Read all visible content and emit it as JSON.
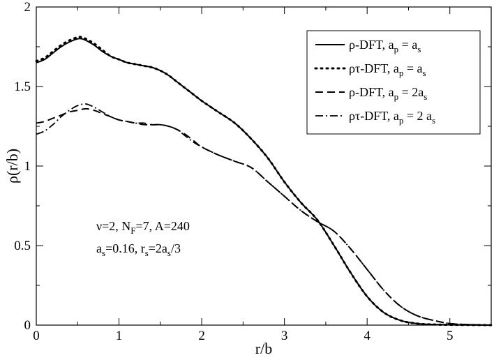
{
  "chart_data": {
    "type": "line",
    "xlabel": "r/b",
    "ylabel": "ρ(r/b)",
    "xlim": [
      0,
      5.5
    ],
    "ylim": [
      0,
      2
    ],
    "x_ticks": [
      0,
      1,
      2,
      3,
      4,
      5
    ],
    "x_tick_labels": [
      "0",
      "1",
      "2",
      "3",
      "4",
      "5"
    ],
    "y_ticks": [
      0,
      0.5,
      1,
      1.5,
      2
    ],
    "y_tick_labels": [
      "0",
      "0.5",
      "1",
      "1.5",
      "2"
    ],
    "annotations": {
      "line1_a": "ν=2, N",
      "line1_sub": "F",
      "line1_b": "=7, A=240",
      "line2_a": "a",
      "line2_sub1": "s",
      "line2_b": "=0.16, r",
      "line2_sub2": "s",
      "line2_c": "=2a",
      "line2_sub3": "s",
      "line2_d": "/3"
    },
    "legend_position": "top-right",
    "series": [
      {
        "name": "ρ-DFT, a_p = a_s",
        "legend": {
          "main": "ρ-DFT, a",
          "sub1": "p",
          "mid": " = a",
          "sub2": "s"
        },
        "style": "solid",
        "x": [
          0,
          0.1,
          0.2,
          0.3,
          0.4,
          0.5,
          0.55,
          0.6,
          0.7,
          0.8,
          0.9,
          1.0,
          1.1,
          1.2,
          1.3,
          1.4,
          1.5,
          1.6,
          1.7,
          1.8,
          1.9,
          2.0,
          2.2,
          2.4,
          2.6,
          2.8,
          3.0,
          3.2,
          3.4,
          3.6,
          3.8,
          4.0,
          4.2,
          4.4,
          4.6,
          4.8,
          5.0,
          5.2,
          5.5
        ],
        "y": [
          1.65,
          1.67,
          1.71,
          1.75,
          1.78,
          1.8,
          1.8,
          1.79,
          1.76,
          1.72,
          1.69,
          1.67,
          1.65,
          1.64,
          1.63,
          1.62,
          1.6,
          1.57,
          1.53,
          1.49,
          1.45,
          1.41,
          1.34,
          1.27,
          1.17,
          1.05,
          0.9,
          0.77,
          0.66,
          0.5,
          0.33,
          0.18,
          0.08,
          0.03,
          0.01,
          0.004,
          0.002,
          0.001,
          0.0
        ]
      },
      {
        "name": "ρτ-DFT, a_p = a_s",
        "legend": {
          "main": "ρτ-DFT, a",
          "sub1": "p",
          "mid": " = a",
          "sub2": "s"
        },
        "style": "dotted",
        "x": [
          0,
          0.1,
          0.2,
          0.3,
          0.4,
          0.5,
          0.55,
          0.6,
          0.7,
          0.8,
          0.9,
          1.0,
          1.1,
          1.2,
          1.3,
          1.4,
          1.5,
          1.6,
          1.7,
          1.8,
          1.9,
          2.0,
          2.2,
          2.4,
          2.6,
          2.8,
          3.0,
          3.2,
          3.4,
          3.6,
          3.8,
          4.0,
          4.2,
          4.4,
          4.6,
          4.8,
          5.0,
          5.2,
          5.5
        ],
        "y": [
          1.66,
          1.68,
          1.72,
          1.76,
          1.79,
          1.81,
          1.81,
          1.8,
          1.77,
          1.73,
          1.69,
          1.67,
          1.65,
          1.64,
          1.63,
          1.62,
          1.6,
          1.57,
          1.53,
          1.49,
          1.45,
          1.41,
          1.34,
          1.27,
          1.17,
          1.05,
          0.9,
          0.77,
          0.66,
          0.5,
          0.33,
          0.18,
          0.08,
          0.03,
          0.01,
          0.004,
          0.002,
          0.001,
          0.0
        ]
      },
      {
        "name": "ρ-DFT, a_p = 2a_s",
        "legend": {
          "main": "ρ-DFT, a",
          "sub1": "p",
          "mid": " = 2a",
          "sub2": "s"
        },
        "style": "dashed",
        "x": [
          0,
          0.1,
          0.2,
          0.3,
          0.4,
          0.5,
          0.6,
          0.7,
          0.8,
          0.9,
          1.0,
          1.1,
          1.2,
          1.3,
          1.4,
          1.5,
          1.6,
          1.7,
          1.8,
          1.9,
          2.0,
          2.2,
          2.4,
          2.6,
          2.8,
          3.0,
          3.2,
          3.4,
          3.6,
          3.8,
          4.0,
          4.2,
          4.4,
          4.6,
          4.8,
          5.0,
          5.2,
          5.5
        ],
        "y": [
          1.27,
          1.28,
          1.3,
          1.32,
          1.34,
          1.35,
          1.36,
          1.35,
          1.33,
          1.31,
          1.29,
          1.28,
          1.27,
          1.27,
          1.26,
          1.26,
          1.25,
          1.23,
          1.2,
          1.16,
          1.12,
          1.07,
          1.03,
          0.99,
          0.9,
          0.81,
          0.72,
          0.65,
          0.59,
          0.48,
          0.35,
          0.22,
          0.12,
          0.06,
          0.03,
          0.01,
          0.004,
          0.0
        ]
      },
      {
        "name": "ρτ-DFT, a_p = 2 a_s",
        "legend": {
          "main": "ρτ-DFT, a",
          "sub1": "p",
          "mid": " = 2 a",
          "sub2": "s"
        },
        "style": "dashdot",
        "x": [
          0,
          0.1,
          0.2,
          0.3,
          0.4,
          0.5,
          0.6,
          0.7,
          0.8,
          0.9,
          1.0,
          1.1,
          1.2,
          1.3,
          1.4,
          1.5,
          1.6,
          1.7,
          1.8,
          1.9,
          2.0,
          2.2,
          2.4,
          2.6,
          2.8,
          3.0,
          3.2,
          3.4,
          3.6,
          3.8,
          4.0,
          4.2,
          4.4,
          4.6,
          4.8,
          5.0,
          5.2,
          5.5
        ],
        "y": [
          1.2,
          1.22,
          1.26,
          1.31,
          1.35,
          1.38,
          1.39,
          1.37,
          1.34,
          1.31,
          1.29,
          1.28,
          1.27,
          1.26,
          1.26,
          1.26,
          1.25,
          1.23,
          1.19,
          1.15,
          1.12,
          1.07,
          1.03,
          0.99,
          0.9,
          0.81,
          0.72,
          0.65,
          0.59,
          0.48,
          0.35,
          0.22,
          0.12,
          0.06,
          0.03,
          0.01,
          0.004,
          0.0
        ]
      }
    ]
  }
}
